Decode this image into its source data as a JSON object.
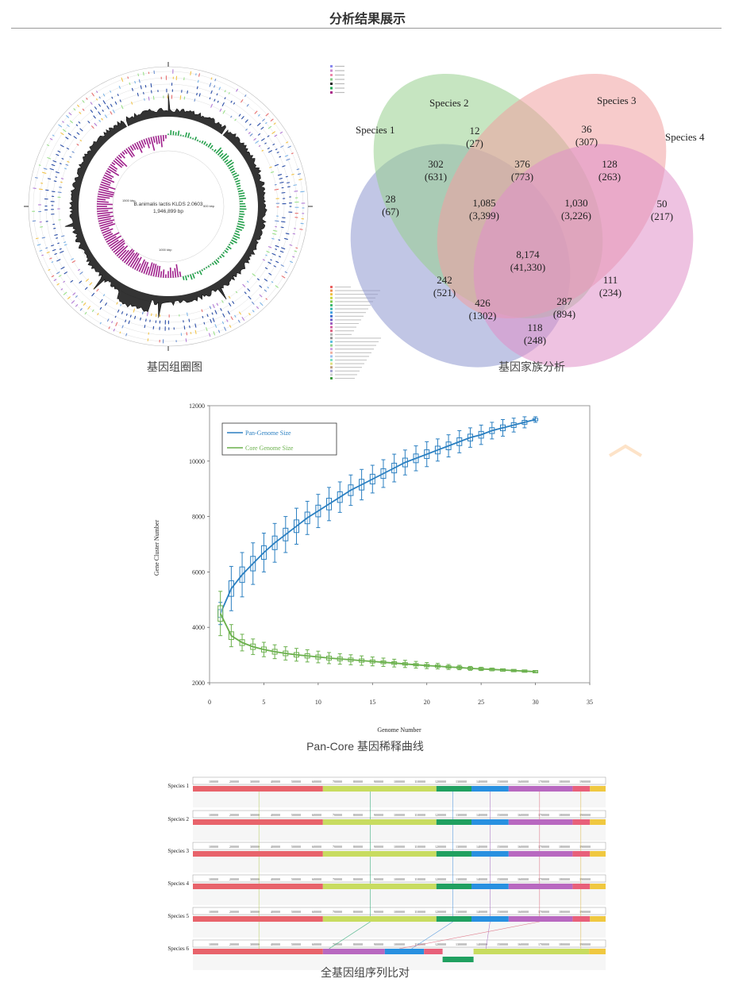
{
  "page": {
    "title": "分析结果展示"
  },
  "genome_circle": {
    "caption": "基因组圈图",
    "center_name": "B.animalis lactis KLDS 2.0603",
    "center_size": "1,946,899 bp",
    "label_left": "1500 kbp",
    "label_right": "500 kbp",
    "label_bottom": "1000 kbp",
    "tiny_labels": [
      "",
      "",
      "",
      "",
      "",
      "",
      ""
    ]
  },
  "venn": {
    "caption": "基因家族分析",
    "species": [
      "Species 1",
      "Species 2",
      "Species 3",
      "Species 4"
    ],
    "colors": [
      "#8e98d0",
      "#98cf8e",
      "#f0a0a0",
      "#e090c8"
    ],
    "regions": [
      {
        "count": "28",
        "families": "(67)"
      },
      {
        "count": "12",
        "families": "(27)"
      },
      {
        "count": "36",
        "families": "(307)"
      },
      {
        "count": "50",
        "families": "(217)"
      },
      {
        "count": "302",
        "families": "(631)"
      },
      {
        "count": "376",
        "families": "(773)"
      },
      {
        "count": "128",
        "families": "(263)"
      },
      {
        "count": "1,085",
        "families": "(3,399)"
      },
      {
        "count": "1,030",
        "families": "(3,226)"
      },
      {
        "count": "8,174",
        "families": "(41,330)"
      },
      {
        "count": "242",
        "families": "(521)"
      },
      {
        "count": "111",
        "families": "(234)"
      },
      {
        "count": "426",
        "families": "(1302)"
      },
      {
        "count": "287",
        "families": "(894)"
      },
      {
        "count": "118",
        "families": "(248)"
      }
    ]
  },
  "chart_data": {
    "type": "line",
    "caption": "Pan-Core 基因稀释曲线",
    "xlabel": "Genome Number",
    "ylabel": "Gene Cluster Number",
    "xlim": [
      0,
      35
    ],
    "ylim": [
      2000,
      12000
    ],
    "xticks": [
      "0",
      "5",
      "10",
      "15",
      "20",
      "25",
      "30",
      "35"
    ],
    "yticks": [
      "2000",
      "4000",
      "6000",
      "8000",
      "10000",
      "12000"
    ],
    "legend_position": "top-left",
    "series": [
      {
        "name": "Pan-Genome Size",
        "color": "#2a7fc1",
        "x": [
          1,
          2,
          3,
          4,
          5,
          6,
          7,
          8,
          9,
          10,
          11,
          12,
          13,
          14,
          15,
          16,
          17,
          18,
          19,
          20,
          21,
          22,
          23,
          24,
          25,
          26,
          27,
          28,
          29,
          30
        ],
        "values": [
          4500,
          5400,
          5900,
          6300,
          6700,
          7050,
          7350,
          7650,
          7950,
          8200,
          8450,
          8700,
          8950,
          9150,
          9350,
          9550,
          9750,
          9950,
          10100,
          10250,
          10400,
          10550,
          10700,
          10850,
          10950,
          11100,
          11200,
          11300,
          11400,
          11500
        ],
        "err": [
          400,
          800,
          800,
          750,
          700,
          700,
          650,
          650,
          600,
          600,
          600,
          550,
          550,
          550,
          500,
          500,
          500,
          450,
          450,
          450,
          400,
          400,
          400,
          350,
          350,
          300,
          300,
          250,
          200,
          100
        ]
      },
      {
        "name": "Core Genome Size",
        "color": "#6ab04c",
        "x": [
          1,
          2,
          3,
          4,
          5,
          6,
          7,
          8,
          9,
          10,
          11,
          12,
          13,
          14,
          15,
          16,
          17,
          18,
          19,
          20,
          21,
          22,
          23,
          24,
          25,
          26,
          27,
          28,
          29,
          30
        ],
        "values": [
          4500,
          3700,
          3450,
          3300,
          3200,
          3120,
          3060,
          3010,
          2970,
          2930,
          2890,
          2860,
          2830,
          2800,
          2770,
          2740,
          2710,
          2680,
          2650,
          2620,
          2600,
          2570,
          2550,
          2520,
          2500,
          2480,
          2460,
          2440,
          2420,
          2400
        ],
        "err": [
          800,
          400,
          300,
          280,
          260,
          250,
          240,
          230,
          220,
          210,
          200,
          190,
          180,
          170,
          160,
          150,
          140,
          130,
          120,
          110,
          100,
          90,
          80,
          70,
          60,
          50,
          40,
          30,
          20,
          10
        ]
      }
    ]
  },
  "alignment": {
    "caption": "全基因组序列比对",
    "species": [
      "Species 1",
      "Species 2",
      "Species 3",
      "Species 4",
      "Species 5",
      "Species 6"
    ],
    "ruler_ticks": [
      "100000",
      "200000",
      "300000",
      "400000",
      "500000",
      "600000",
      "700000",
      "800000",
      "900000",
      "1000000",
      "1100000",
      "1200000",
      "1300000",
      "1400000",
      "1500000",
      "1600000",
      "1700000",
      "1800000",
      "1900000"
    ],
    "block_colors": [
      "#e8636b",
      "#c8dc60",
      "#20a060",
      "#2890e0",
      "#b868c0",
      "#e8607a",
      "#f0c840"
    ]
  }
}
